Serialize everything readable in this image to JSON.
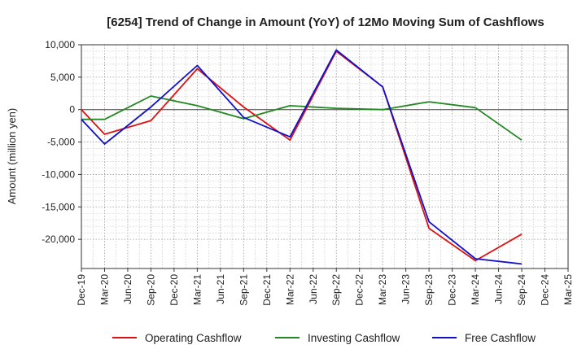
{
  "chart_data": {
    "type": "line",
    "title": "[6254]  Trend of Change in Amount (YoY) of 12Mo Moving Sum of Cashflows",
    "xlabel": "",
    "ylabel": "Amount (million yen)",
    "ylim": [
      -24500,
      10000
    ],
    "yticks": [
      10000,
      5000,
      0,
      -5000,
      -10000,
      -15000,
      -20000
    ],
    "ytick_labels": [
      "10,000",
      "5,000",
      "0",
      "-5,000",
      "-10,000",
      "-15,000",
      "-20,000"
    ],
    "categories": [
      "Dec-19",
      "Mar-20",
      "Jun-20",
      "Sep-20",
      "Dec-20",
      "Mar-21",
      "Jun-21",
      "Sep-21",
      "Dec-21",
      "Mar-22",
      "Jun-22",
      "Sep-22",
      "Dec-22",
      "Mar-23",
      "Jun-23",
      "Sep-23",
      "Dec-23",
      "Mar-24",
      "Jun-24",
      "Sep-24",
      "Dec-24",
      "Mar-25"
    ],
    "grid": true,
    "legend_position": "bottom",
    "series": [
      {
        "name": "Operating Cashflow",
        "color": "#dd1111",
        "values": [
          0,
          -3800,
          null,
          -1700,
          null,
          6300,
          null,
          400,
          null,
          -4700,
          null,
          9000,
          null,
          3500,
          null,
          -18300,
          null,
          -23300,
          null,
          -19200,
          null,
          null
        ]
      },
      {
        "name": "Investing Cashflow",
        "color": "#228822",
        "values": [
          -1500,
          -1500,
          null,
          2100,
          null,
          600,
          null,
          -1400,
          null,
          600,
          null,
          200,
          null,
          0,
          null,
          1200,
          null,
          300,
          null,
          -4700,
          null,
          null
        ]
      },
      {
        "name": "Free Cashflow",
        "color": "#1111cc",
        "values": [
          -1500,
          -5300,
          null,
          400,
          null,
          6800,
          null,
          -1200,
          null,
          -4200,
          null,
          9200,
          null,
          3500,
          null,
          -17300,
          null,
          -23000,
          null,
          -23800,
          null,
          null
        ]
      }
    ]
  }
}
